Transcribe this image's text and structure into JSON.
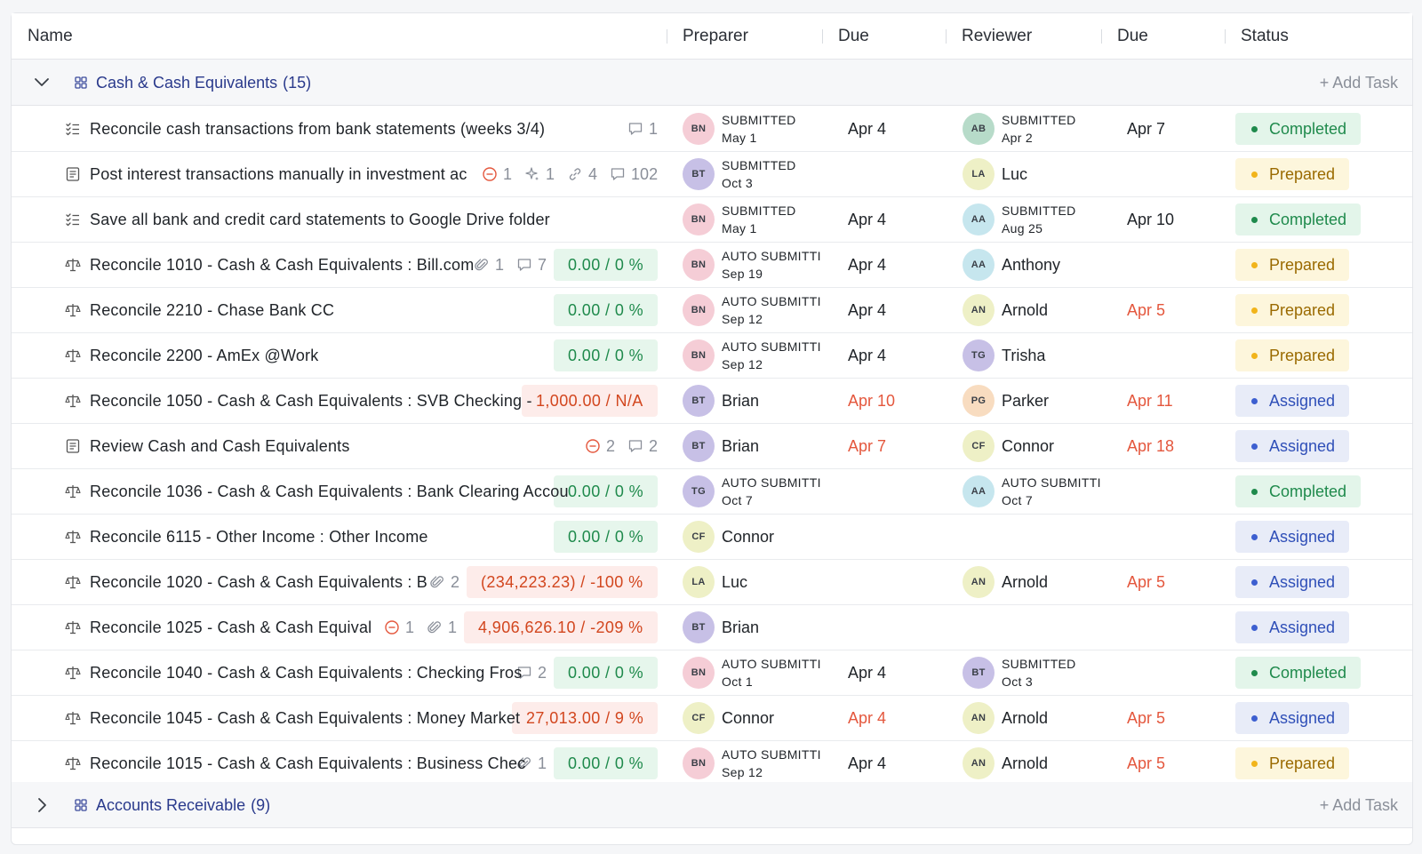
{
  "columns": {
    "name": "Name",
    "preparer": "Preparer",
    "due1": "Due",
    "reviewer": "Reviewer",
    "due2": "Due",
    "status": "Status"
  },
  "groups": [
    {
      "name": "Cash & Cash Equivalents",
      "count": "(15)",
      "add_task": "+ Add Task",
      "expanded": true
    },
    {
      "name": "Accounts Receivable",
      "count": "(9)",
      "add_task": "+ Add Task",
      "expanded": false
    }
  ],
  "colors": {
    "completed": "#1f8a4c",
    "prepared": "#f1b41b",
    "assigned": "#3d5fd0",
    "late": "#e4573d",
    "group_name": "#2a3a8c"
  },
  "rows": [
    {
      "icon": "checklist-icon",
      "name": "Reconcile cash transactions from bank statements (weeks 3/4)",
      "meta": [
        {
          "icon": "comment-icon",
          "count": "1"
        }
      ],
      "variance": null,
      "preparer": {
        "initials": "BN",
        "color": "#f5cdd6",
        "line1": "SUBMITTED",
        "line2": "May 1",
        "name": ""
      },
      "due1": "Apr 4",
      "due1_late": false,
      "reviewer": {
        "initials": "AB",
        "color": "#b7dbc9",
        "line1": "SUBMITTED",
        "line2": "Apr 2",
        "name": ""
      },
      "due2": "Apr 7",
      "due2_late": false,
      "status": "Completed",
      "status_type": "completed"
    },
    {
      "icon": "document-icon",
      "name": "Post interest transactions manually in investment ac",
      "meta": [
        {
          "icon": "minus-circle-icon",
          "count": "1",
          "warn": true
        },
        {
          "icon": "sparkle-icon",
          "count": "1"
        },
        {
          "icon": "link-icon",
          "count": "4"
        },
        {
          "icon": "comment-icon",
          "count": "102"
        }
      ],
      "variance": null,
      "preparer": {
        "initials": "BT",
        "color": "#c7c0e6",
        "line1": "SUBMITTED",
        "line2": "Oct 3",
        "name": ""
      },
      "due1": "",
      "due1_late": false,
      "reviewer": {
        "initials": "LA",
        "color": "#eef0c6",
        "line1": "",
        "line2": "",
        "name": "Luc"
      },
      "due2": "",
      "due2_late": false,
      "status": "Prepared",
      "status_type": "prepared"
    },
    {
      "icon": "checklist-icon",
      "name": "Save all bank and credit card statements to Google Drive folder",
      "meta": [],
      "variance": null,
      "preparer": {
        "initials": "BN",
        "color": "#f5cdd6",
        "line1": "SUBMITTED",
        "line2": "May 1",
        "name": ""
      },
      "due1": "Apr 4",
      "due1_late": false,
      "reviewer": {
        "initials": "AA",
        "color": "#c6e6ee",
        "line1": "SUBMITTED",
        "line2": "Aug 25",
        "name": ""
      },
      "due2": "Apr 10",
      "due2_late": false,
      "status": "Completed",
      "status_type": "completed"
    },
    {
      "icon": "scale-icon",
      "name": "Reconcile 1010 - Cash & Cash Equivalents : Bill.com",
      "meta": [
        {
          "icon": "paperclip-icon",
          "count": "1"
        },
        {
          "icon": "comment-icon",
          "count": "7"
        }
      ],
      "variance": {
        "text": "0.00 / 0 %",
        "ok": true
      },
      "preparer": {
        "initials": "BN",
        "color": "#f5cdd6",
        "line1": "AUTO SUBMITTI",
        "line2": "Sep 19",
        "name": ""
      },
      "due1": "Apr 4",
      "due1_late": false,
      "reviewer": {
        "initials": "AA",
        "color": "#c6e6ee",
        "line1": "",
        "line2": "",
        "name": "Anthony"
      },
      "due2": "",
      "due2_late": false,
      "status": "Prepared",
      "status_type": "prepared"
    },
    {
      "icon": "scale-icon",
      "name": "Reconcile 2210 - Chase Bank CC",
      "meta": [],
      "variance": {
        "text": "0.00 / 0 %",
        "ok": true
      },
      "preparer": {
        "initials": "BN",
        "color": "#f5cdd6",
        "line1": "AUTO SUBMITTI",
        "line2": "Sep 12",
        "name": ""
      },
      "due1": "Apr 4",
      "due1_late": false,
      "reviewer": {
        "initials": "AN",
        "color": "#eef0c6",
        "line1": "",
        "line2": "",
        "name": "Arnold"
      },
      "due2": "Apr 5",
      "due2_late": true,
      "status": "Prepared",
      "status_type": "prepared"
    },
    {
      "icon": "scale-icon",
      "name": "Reconcile 2200 - AmEx @Work",
      "meta": [],
      "variance": {
        "text": "0.00 / 0 %",
        "ok": true
      },
      "preparer": {
        "initials": "BN",
        "color": "#f5cdd6",
        "line1": "AUTO SUBMITTI",
        "line2": "Sep 12",
        "name": ""
      },
      "due1": "Apr 4",
      "due1_late": false,
      "reviewer": {
        "initials": "TG",
        "color": "#c7c0e6",
        "line1": "",
        "line2": "",
        "name": "Trisha"
      },
      "due2": "",
      "due2_late": false,
      "status": "Prepared",
      "status_type": "prepared"
    },
    {
      "icon": "scale-icon",
      "name": "Reconcile 1050 - Cash & Cash Equivalents : SVB Checking -",
      "meta": [],
      "variance": {
        "text": "1,000.00 / N/A",
        "ok": false
      },
      "preparer": {
        "initials": "BT",
        "color": "#c7c0e6",
        "line1": "",
        "line2": "",
        "name": "Brian"
      },
      "due1": "Apr 10",
      "due1_late": true,
      "reviewer": {
        "initials": "PG",
        "color": "#f8dcc0",
        "line1": "",
        "line2": "",
        "name": "Parker"
      },
      "due2": "Apr 11",
      "due2_late": true,
      "status": "Assigned",
      "status_type": "assigned"
    },
    {
      "icon": "document-icon",
      "name": "Review Cash and Cash Equivalents",
      "meta": [
        {
          "icon": "minus-circle-icon",
          "count": "2",
          "warn": true
        },
        {
          "icon": "comment-icon",
          "count": "2"
        }
      ],
      "variance": null,
      "preparer": {
        "initials": "BT",
        "color": "#c7c0e6",
        "line1": "",
        "line2": "",
        "name": "Brian"
      },
      "due1": "Apr 7",
      "due1_late": true,
      "reviewer": {
        "initials": "CF",
        "color": "#eef0c6",
        "line1": "",
        "line2": "",
        "name": "Connor"
      },
      "due2": "Apr 18",
      "due2_late": true,
      "status": "Assigned",
      "status_type": "assigned"
    },
    {
      "icon": "scale-icon",
      "name": "Reconcile 1036 - Cash & Cash Equivalents : Bank Clearing Accou",
      "meta": [],
      "variance": {
        "text": "0.00 / 0 %",
        "ok": true
      },
      "preparer": {
        "initials": "TG",
        "color": "#c7c0e6",
        "line1": "AUTO SUBMITTI",
        "line2": "Oct 7",
        "name": ""
      },
      "due1": "",
      "due1_late": false,
      "reviewer": {
        "initials": "AA",
        "color": "#c6e6ee",
        "line1": "AUTO SUBMITTI",
        "line2": "Oct 7",
        "name": ""
      },
      "due2": "",
      "due2_late": false,
      "status": "Completed",
      "status_type": "completed"
    },
    {
      "icon": "scale-icon",
      "name": "Reconcile 6115 - Other Income : Other Income",
      "meta": [],
      "variance": {
        "text": "0.00 / 0 %",
        "ok": true
      },
      "preparer": {
        "initials": "CF",
        "color": "#eef0c6",
        "line1": "",
        "line2": "",
        "name": "Connor"
      },
      "due1": "",
      "due1_late": false,
      "reviewer": null,
      "due2": "",
      "due2_late": false,
      "status": "Assigned",
      "status_type": "assigned"
    },
    {
      "icon": "scale-icon",
      "name": "Reconcile 1020 - Cash & Cash Equivalents : B",
      "meta": [
        {
          "icon": "paperclip-icon",
          "count": "2"
        }
      ],
      "variance": {
        "text": "(234,223.23) / -100 %",
        "ok": false
      },
      "preparer": {
        "initials": "LA",
        "color": "#eef0c6",
        "line1": "",
        "line2": "",
        "name": "Luc"
      },
      "due1": "",
      "due1_late": false,
      "reviewer": {
        "initials": "AN",
        "color": "#eef0c6",
        "line1": "",
        "line2": "",
        "name": "Arnold"
      },
      "due2": "Apr 5",
      "due2_late": true,
      "status": "Assigned",
      "status_type": "assigned"
    },
    {
      "icon": "scale-icon",
      "name": "Reconcile 1025 - Cash & Cash Equival",
      "meta": [
        {
          "icon": "minus-circle-icon",
          "count": "1",
          "warn": true
        },
        {
          "icon": "paperclip-icon",
          "count": "1"
        }
      ],
      "variance": {
        "text": "4,906,626.10 / -209 %",
        "ok": false
      },
      "preparer": {
        "initials": "BT",
        "color": "#c7c0e6",
        "line1": "",
        "line2": "",
        "name": "Brian"
      },
      "due1": "",
      "due1_late": false,
      "reviewer": null,
      "due2": "",
      "due2_late": false,
      "status": "Assigned",
      "status_type": "assigned"
    },
    {
      "icon": "scale-icon",
      "name": "Reconcile 1040 - Cash & Cash Equivalents : Checking Fros",
      "meta": [
        {
          "icon": "comment-icon",
          "count": "2"
        }
      ],
      "variance": {
        "text": "0.00 / 0 %",
        "ok": true
      },
      "preparer": {
        "initials": "BN",
        "color": "#f5cdd6",
        "line1": "AUTO SUBMITTI",
        "line2": "Oct 1",
        "name": ""
      },
      "due1": "Apr 4",
      "due1_late": false,
      "reviewer": {
        "initials": "BT",
        "color": "#c7c0e6",
        "line1": "SUBMITTED",
        "line2": "Oct 3",
        "name": ""
      },
      "due2": "",
      "due2_late": false,
      "status": "Completed",
      "status_type": "completed"
    },
    {
      "icon": "scale-icon",
      "name": "Reconcile 1045 - Cash & Cash Equivalents : Money Market",
      "meta": [],
      "variance": {
        "text": "27,013.00 / 9 %",
        "ok": false
      },
      "preparer": {
        "initials": "CF",
        "color": "#eef0c6",
        "line1": "",
        "line2": "",
        "name": "Connor"
      },
      "due1": "Apr 4",
      "due1_late": true,
      "reviewer": {
        "initials": "AN",
        "color": "#eef0c6",
        "line1": "",
        "line2": "",
        "name": "Arnold"
      },
      "due2": "Apr 5",
      "due2_late": true,
      "status": "Assigned",
      "status_type": "assigned"
    },
    {
      "icon": "scale-icon",
      "name": "Reconcile 1015 - Cash & Cash Equivalents : Business Chec",
      "meta": [
        {
          "icon": "paperclip-icon",
          "count": "1"
        }
      ],
      "variance": {
        "text": "0.00 / 0 %",
        "ok": true
      },
      "preparer": {
        "initials": "BN",
        "color": "#f5cdd6",
        "line1": "AUTO SUBMITTI",
        "line2": "Sep 12",
        "name": ""
      },
      "due1": "Apr 4",
      "due1_late": false,
      "reviewer": {
        "initials": "AN",
        "color": "#eef0c6",
        "line1": "",
        "line2": "",
        "name": "Arnold"
      },
      "due2": "Apr 5",
      "due2_late": true,
      "status": "Prepared",
      "status_type": "prepared"
    }
  ]
}
